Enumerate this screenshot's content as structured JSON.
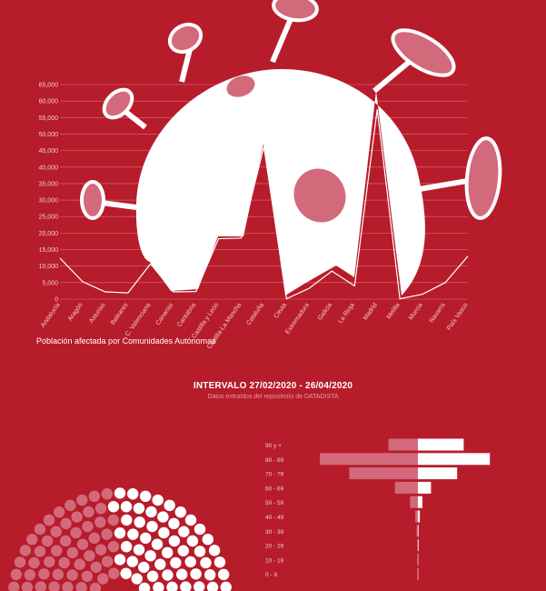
{
  "colors": {
    "background": "#b71c2b",
    "white": "#ffffff",
    "pink": "#d36a7c",
    "line": "#ffffff"
  },
  "virus_icon": "coronavirus-illustration",
  "labels": {
    "chart_title": "Población afectada por Comunidades Autónomas",
    "interval_title": "INTERVALO 27/02/2020 - 26/04/2020",
    "interval_subtitle": "Datos extraídos del repositorio de DATADISTA"
  },
  "chart_data": [
    {
      "type": "line",
      "categories": [
        "Andalucía",
        "Aragón",
        "Asturias",
        "Baleares",
        "C. Valenciana",
        "Canarias",
        "Cantabria",
        "Castilla y León",
        "Castilla-La Mancha",
        "Cataluña",
        "Ceuta",
        "Extremadura",
        "Galicia",
        "La Rioja",
        "Madrid",
        "Melilla",
        "Murcia",
        "Navarra",
        "País Vasco"
      ],
      "values": [
        12400,
        5300,
        2200,
        1900,
        10700,
        2200,
        2300,
        18300,
        18500,
        46200,
        100,
        3300,
        8500,
        4000,
        57500,
        100,
        1500,
        5000,
        13000
      ],
      "ylim": [
        0,
        65000
      ],
      "yticks": [
        0,
        5000,
        10000,
        15000,
        20000,
        25000,
        30000,
        35000,
        40000,
        45000,
        50000,
        55000,
        60000,
        65000
      ],
      "ytick_labels": [
        "0",
        "5,000",
        "10,000",
        "15,000",
        "20,000",
        "25,000",
        "30,000",
        "35,000",
        "40,000",
        "45,000",
        "50,000",
        "55,000",
        "60,000",
        "65,000"
      ],
      "grid": true
    },
    {
      "type": "bar",
      "orientation": "horizontal",
      "categories": [
        "90 y +",
        "80 - 89",
        "70 - 79",
        "60 - 69",
        "50 - 59",
        "40 - 49",
        "30 - 39",
        "20 - 29",
        "10 - 19",
        "0 - 9"
      ],
      "series": [
        {
          "values": [
            -45,
            -150,
            -105,
            -35,
            -12,
            -4,
            -2,
            -1,
            -1,
            -1
          ]
        },
        {
          "values": [
            70,
            110,
            60,
            20,
            7,
            3,
            1,
            1,
            0.5,
            0.5
          ]
        }
      ]
    },
    {
      "type": "waffle",
      "shape": "semicircle",
      "segments": [
        {
          "color": "pink",
          "count": 63
        },
        {
          "color": "white",
          "count": 70
        }
      ]
    }
  ]
}
